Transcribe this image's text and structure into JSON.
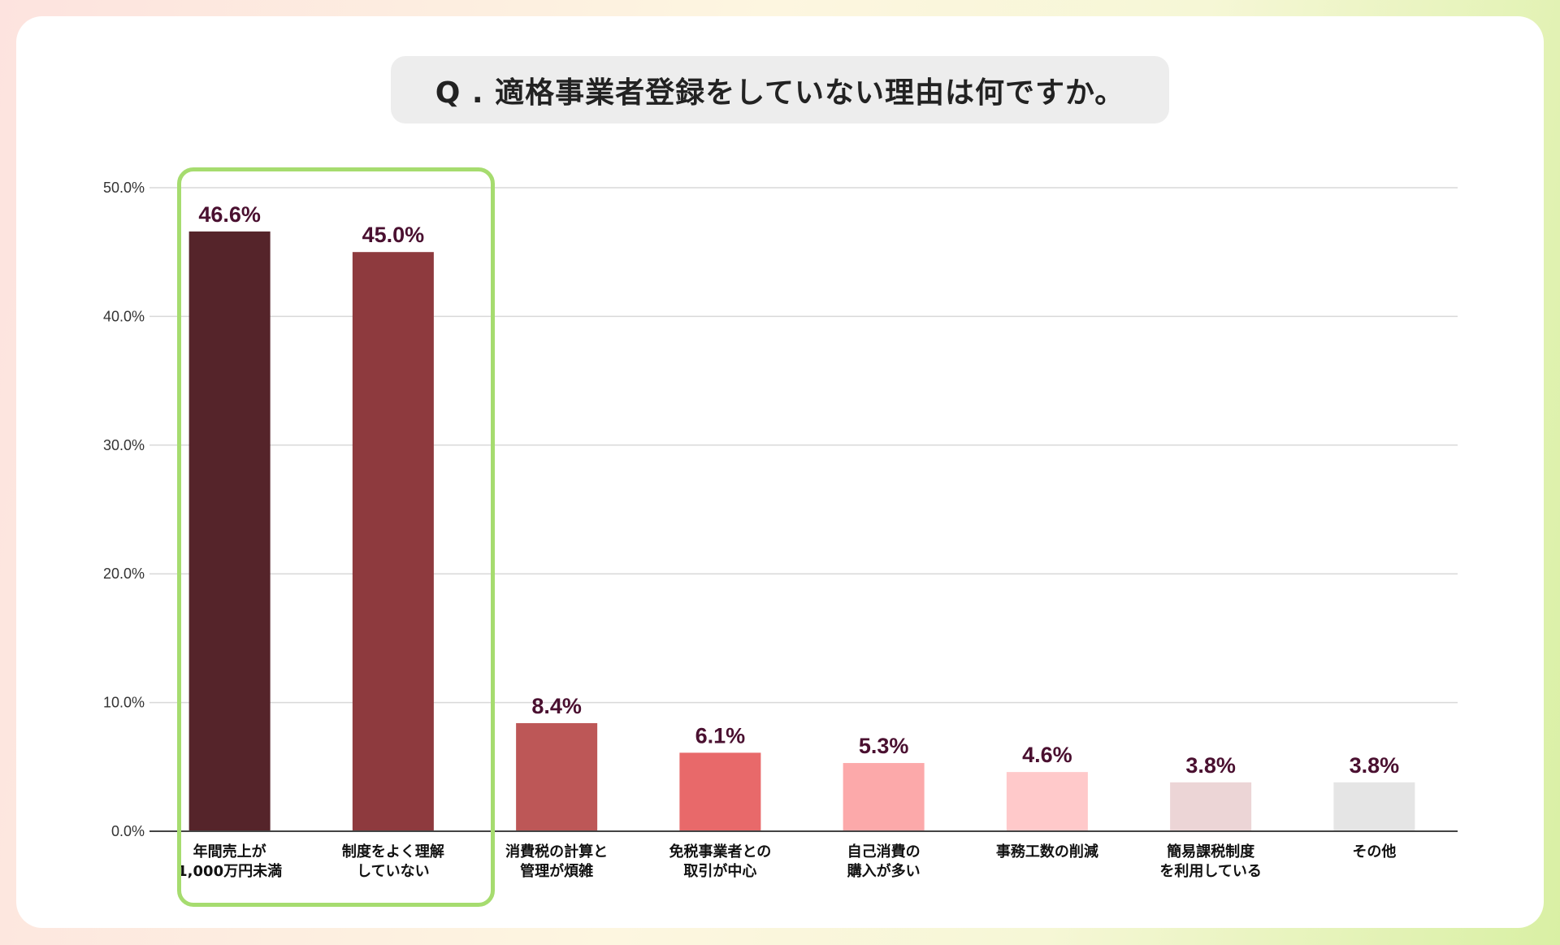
{
  "chart_data": {
    "type": "bar",
    "title": "Q . 適格事業者登録をしていない理由は何ですか。",
    "categories": [
      [
        "年間売上が",
        "1,000万円未満"
      ],
      [
        "制度をよく理解",
        "していない"
      ],
      [
        "消費税の計算と",
        "管理が煩雑"
      ],
      [
        "免税事業者との",
        "取引が中心"
      ],
      [
        "自己消費の",
        "購入が多い"
      ],
      [
        "事務工数の削減"
      ],
      [
        "簡易課税制度",
        "を利用している"
      ],
      [
        "その他"
      ]
    ],
    "values": [
      46.6,
      45.0,
      8.4,
      6.1,
      5.3,
      4.6,
      3.8,
      3.8
    ],
    "value_labels": [
      "46.6%",
      "45.0%",
      "8.4%",
      "6.1%",
      "5.3%",
      "4.6%",
      "3.8%",
      "3.8%"
    ],
    "colors": [
      "#55242a",
      "#8e3a3e",
      "#bd5757",
      "#e8696a",
      "#fca9aa",
      "#ffc9ca",
      "#ecd5d6",
      "#e5e5e5"
    ],
    "yticks": [
      "0.0%",
      "10.0%",
      "20.0%",
      "30.0%",
      "40.0%",
      "50.0%"
    ],
    "ylim": [
      0,
      50
    ],
    "grid": true,
    "highlight": {
      "categories": [
        0,
        1
      ],
      "color": "#a6dc6f"
    },
    "label_color": "#4a1030"
  }
}
